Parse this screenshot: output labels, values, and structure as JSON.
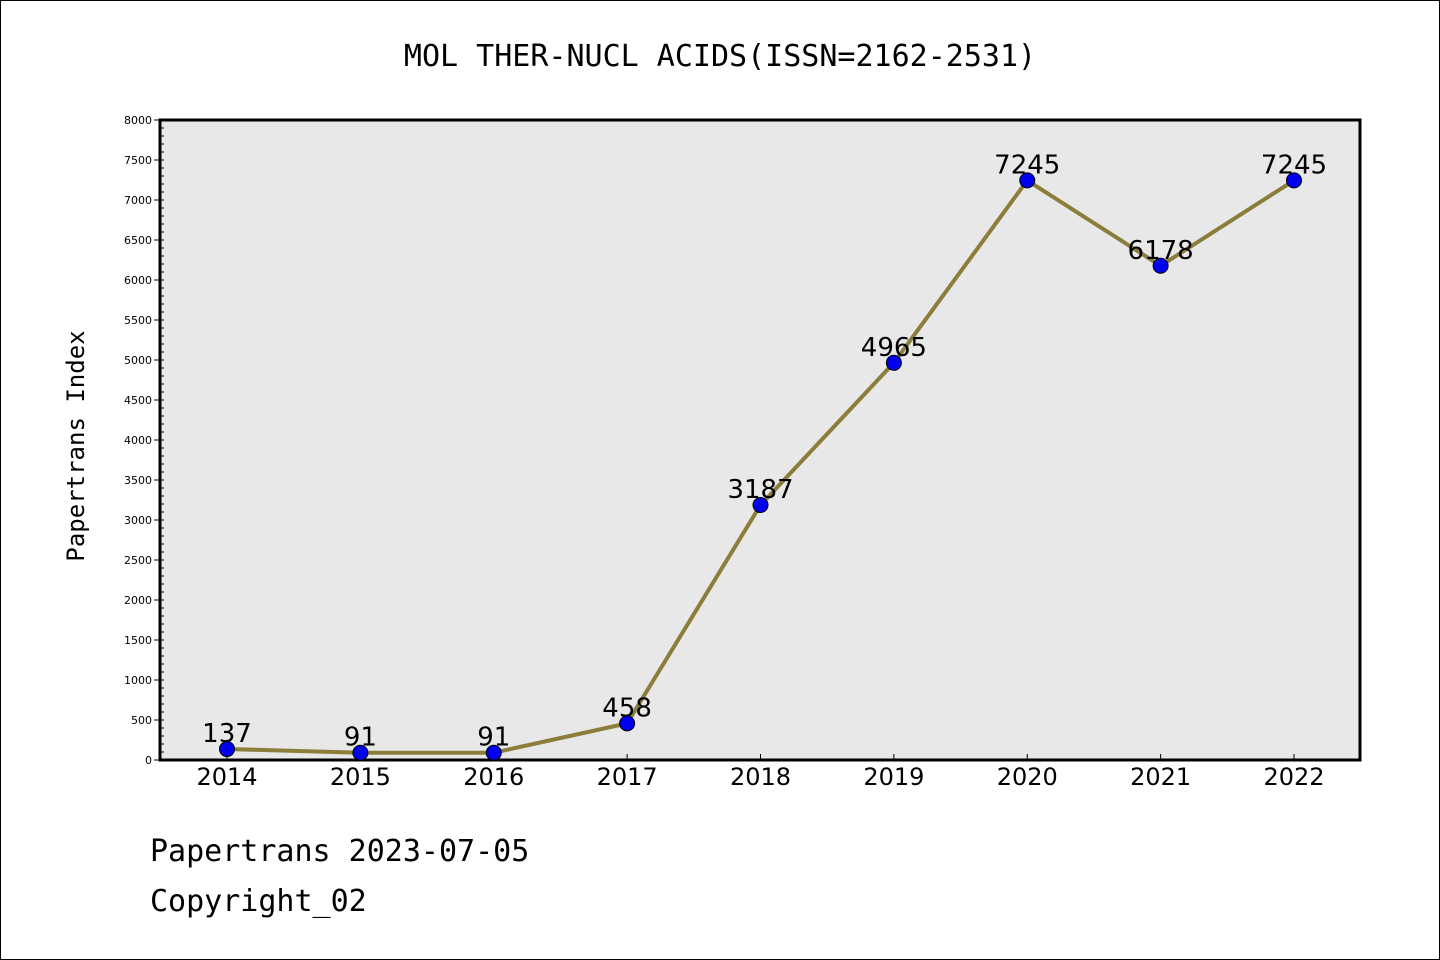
{
  "footer": {
    "line1": "Papertrans 2023-07-05",
    "line2": "Copyright_02"
  },
  "chart_data": {
    "type": "line",
    "title": "MOL THER-NUCL ACIDS(ISSN=2162-2531)",
    "xlabel": "",
    "ylabel": "Papertrans Index",
    "categories": [
      "2014",
      "2015",
      "2016",
      "2017",
      "2018",
      "2019",
      "2020",
      "2021",
      "2022"
    ],
    "values": [
      137,
      91,
      91,
      458,
      3187,
      4965,
      7245,
      6178,
      7245
    ],
    "data_labels": [
      "137",
      "91",
      "91",
      "458",
      "3187",
      "4965",
      "7245",
      "6178",
      "7245"
    ],
    "ylim": [
      0,
      8000
    ],
    "ytick_step": 500,
    "grid": false,
    "legend": "none",
    "colors": {
      "line": "#8b7d3a",
      "marker": "#0000ee",
      "plot_background": "#e8e8e8"
    }
  }
}
